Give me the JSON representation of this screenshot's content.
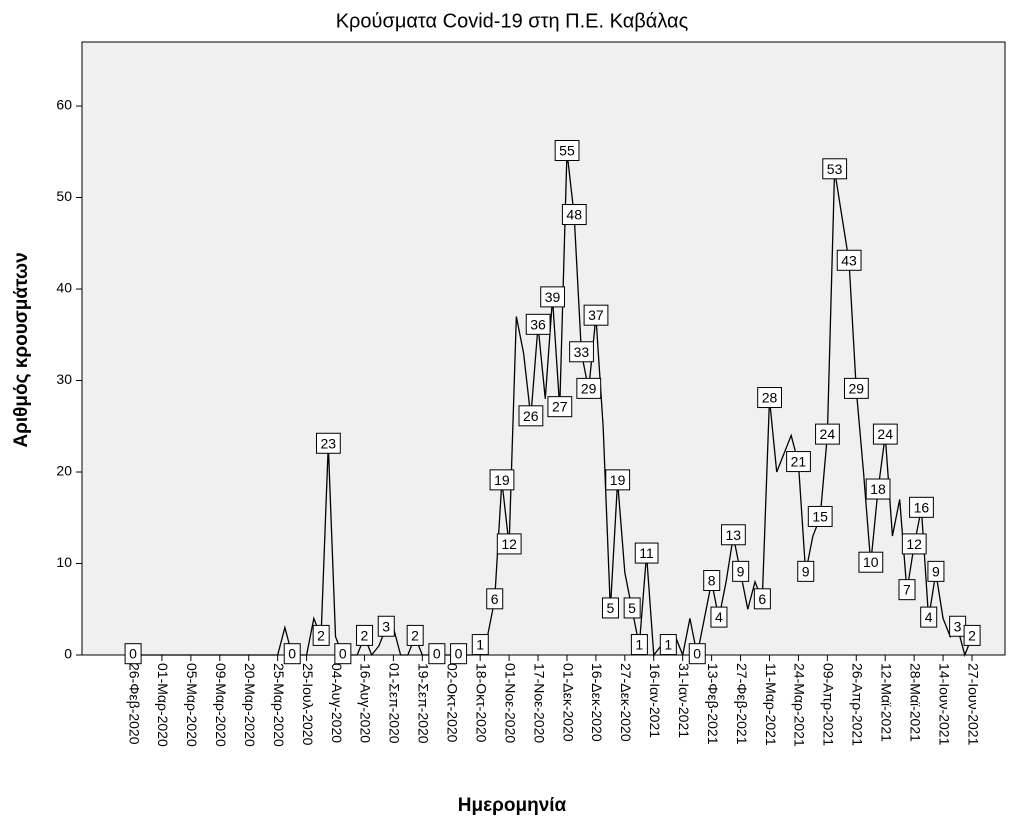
{
  "chart_data": {
    "type": "line",
    "title": "Κρούσματα Covid-19 στη Π.Ε. Καβάλας",
    "x_label": "Ημερομηνία",
    "y_label": "Αριθμός κρουσμάτων",
    "categories": [
      "26-Φεβ-2020",
      null,
      null,
      null,
      "01-Μαρ-2020",
      null,
      null,
      null,
      "05-Μαρ-2020",
      null,
      null,
      null,
      "09-Μαρ-2020",
      null,
      null,
      null,
      "20-Μαρ-2020",
      null,
      null,
      null,
      "25-Μαρ-2020",
      null,
      null,
      null,
      "25-Ιουλ-2020",
      null,
      null,
      null,
      "04-Αυγ-2020",
      null,
      null,
      null,
      "16-Αυγ-2020",
      null,
      null,
      null,
      "01-Σεπ-2020",
      null,
      null,
      null,
      "19-Σεπ-2020",
      null,
      null,
      null,
      "02-Οκτ-2020",
      null,
      null,
      null,
      "18-Οκτ-2020",
      null,
      null,
      null,
      "01-Νοε-2020",
      null,
      null,
      null,
      "17-Νοε-2020",
      null,
      null,
      null,
      "01-Δεκ-2020",
      null,
      null,
      null,
      "16-Δεκ-2020",
      null,
      null,
      null,
      "27-Δεκ-2020",
      null,
      null,
      null,
      "16-Ιαν-2021",
      null,
      null,
      null,
      "31-Ιαν-2021",
      null,
      null,
      null,
      "13-Φεβ-2021",
      null,
      null,
      null,
      "27-Φεβ-2021",
      null,
      null,
      null,
      "11-Μαρ-2021",
      null,
      null,
      null,
      "24-Μαρ-2021",
      null,
      null,
      null,
      "09-Απρ-2021",
      null,
      null,
      null,
      "26-Απρ-2021",
      null,
      null,
      null,
      "12-Μαϊ-2021",
      null,
      null,
      null,
      "28-Μαϊ-2021",
      null,
      null,
      null,
      "14-Ιουν-2021",
      null,
      null,
      null,
      "27-Ιουν-2021"
    ],
    "values": [
      0,
      0,
      0,
      0,
      0,
      0,
      0,
      0,
      0,
      0,
      0,
      0,
      0,
      0,
      0,
      0,
      0,
      0,
      0,
      0,
      0,
      3,
      0,
      0,
      0,
      4,
      2,
      23,
      2,
      0,
      0,
      0,
      2,
      0,
      1,
      3,
      3,
      0,
      0,
      2,
      0,
      0,
      0,
      0,
      0,
      0,
      0,
      0,
      1,
      2,
      6,
      19,
      12,
      37,
      33,
      26,
      36,
      28,
      39,
      27,
      55,
      48,
      33,
      29,
      37,
      25,
      5,
      19,
      9,
      5,
      1,
      11,
      0,
      1,
      1,
      2,
      0,
      4,
      0,
      4,
      8,
      4,
      8,
      13,
      9,
      5,
      8,
      6,
      28,
      20,
      22,
      24,
      21,
      9,
      13,
      15,
      24,
      53,
      48,
      43,
      29,
      20,
      10,
      18,
      24,
      13,
      17,
      7,
      12,
      16,
      4,
      9,
      4,
      2,
      3,
      0,
      2
    ],
    "value_labels": [
      "0",
      null,
      null,
      null,
      null,
      null,
      null,
      null,
      null,
      null,
      null,
      null,
      null,
      null,
      null,
      null,
      null,
      null,
      null,
      null,
      null,
      null,
      "0",
      null,
      null,
      null,
      "2",
      "23",
      null,
      "0",
      null,
      null,
      "2",
      null,
      null,
      "3",
      null,
      null,
      null,
      "2",
      null,
      null,
      "0",
      null,
      null,
      "0",
      null,
      null,
      "1",
      null,
      "6",
      "19",
      "12",
      null,
      null,
      "26",
      "36",
      null,
      "39",
      "27",
      "55",
      "48",
      "33",
      "29",
      "37",
      null,
      "5",
      "19",
      null,
      "5",
      "1",
      "11",
      null,
      null,
      "1",
      null,
      null,
      null,
      "0",
      null,
      "8",
      "4",
      null,
      "13",
      "9",
      null,
      null,
      "6",
      "28",
      null,
      null,
      null,
      "21",
      "9",
      null,
      "15",
      "24",
      "53",
      null,
      "43",
      "29",
      null,
      "10",
      "18",
      "24",
      null,
      null,
      "7",
      "12",
      "16",
      "4",
      "9",
      null,
      null,
      "3",
      null,
      "2"
    ],
    "color": "#000000",
    "ylim": [
      0,
      67
    ],
    "yticks": [
      0,
      10,
      20,
      30,
      40,
      50,
      60
    ],
    "grid": false
  }
}
